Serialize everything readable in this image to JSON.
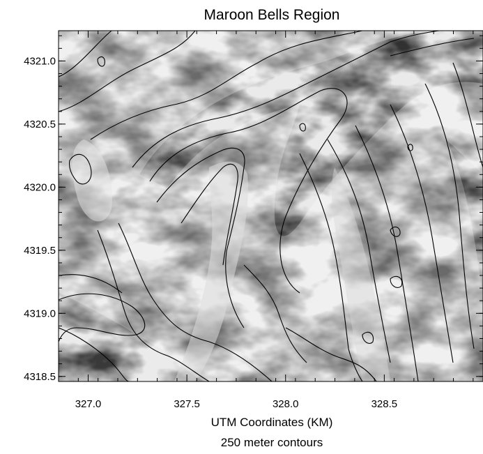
{
  "chart_data": {
    "type": "heatmap",
    "title": "Maroon Bells Region",
    "xlabel": "UTM Coordinates (KM)",
    "subtitle": "250 meter contours",
    "ylabel": "",
    "x_ticks": [
      327.0,
      327.5,
      328.0,
      328.5
    ],
    "x_tick_labels": [
      "327.0",
      "327.5",
      "328.0",
      "328.5"
    ],
    "y_ticks": [
      4318.5,
      4319.0,
      4319.5,
      4320.0,
      4320.5,
      4321.0
    ],
    "y_tick_labels": [
      "4318.5",
      "4319.0",
      "4319.5",
      "4320.0",
      "4320.5",
      "4321.0"
    ],
    "xlim": [
      326.85,
      329.0
    ],
    "ylim": [
      4318.46,
      4321.24
    ],
    "colormap": "grayscale (dark = low elevation, light = high elevation)",
    "contour_color": "#000000",
    "grid": false
  }
}
